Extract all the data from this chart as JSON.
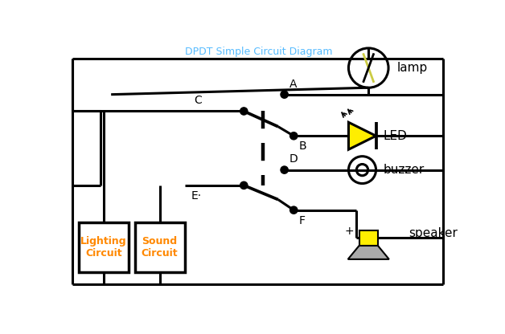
{
  "bg_color": "#ffffff",
  "wire_color": "#000000",
  "orange_color": "#ff8800",
  "led_color": "#ffee00",
  "speaker_yellow": "#ffee00",
  "speaker_grey": "#aaaaaa",
  "figsize": [
    6.28,
    4.16
  ],
  "dpi": 100,
  "lamp_label": "lamp",
  "led_label": "LED",
  "buzzer_label": "buzzer",
  "speaker_label": "speaker",
  "lighting_label": "Lighting\nCircuit",
  "sound_label": "Sound\nCircuit",
  "title": "DPDT Simple Circuit Diagram",
  "title_color": "#55bbff"
}
